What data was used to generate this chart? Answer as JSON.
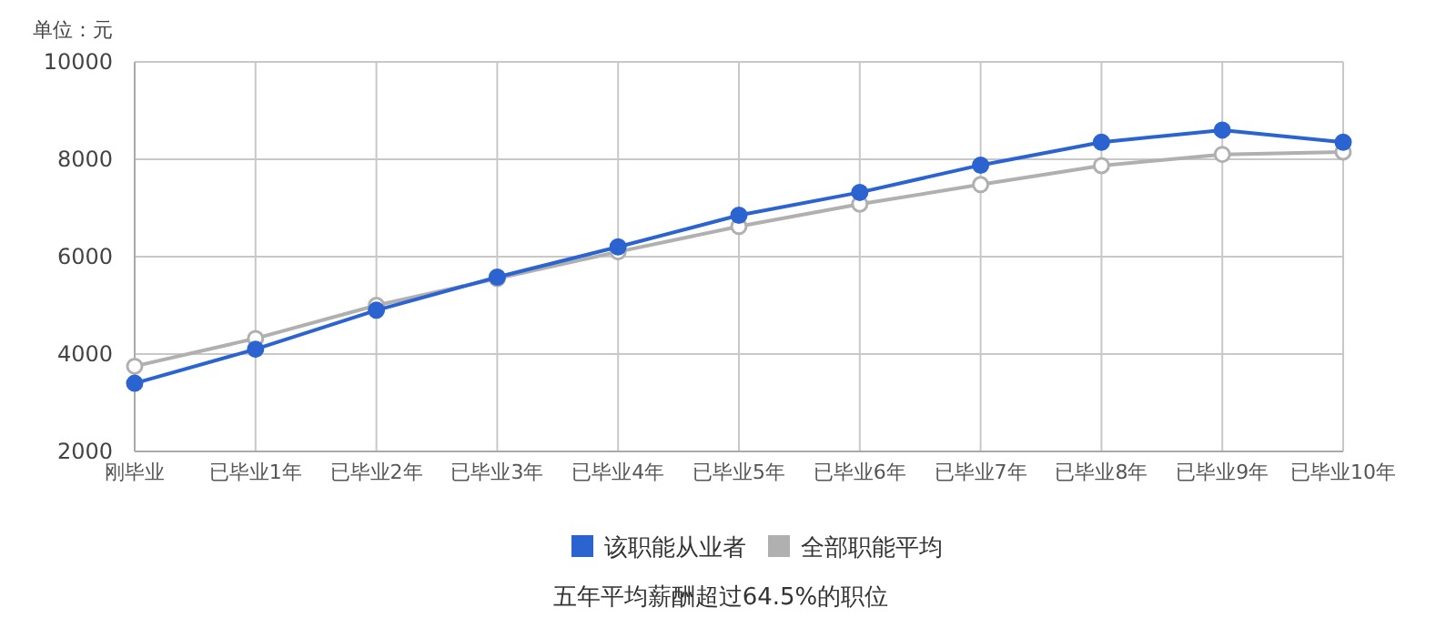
{
  "chart_data": {
    "type": "line",
    "ylabel": "单位：元",
    "categories": [
      "刚毕业",
      "已毕业1年",
      "已毕业2年",
      "已毕业3年",
      "已毕业4年",
      "已毕业5年",
      "已毕业6年",
      "已毕业7年",
      "已毕业8年",
      "已毕业9年",
      "已毕业10年"
    ],
    "series": [
      {
        "name": "该职能从业者",
        "color": "#2b64d0",
        "values": [
          3400,
          4100,
          4900,
          5580,
          6200,
          6850,
          7320,
          7880,
          8350,
          8600,
          8350
        ]
      },
      {
        "name": "全部职能平均",
        "color": "#b0b0b0",
        "values": [
          3750,
          4320,
          5000,
          5550,
          6100,
          6620,
          7080,
          7480,
          7870,
          8100,
          8150
        ]
      }
    ],
    "ylim": [
      2000,
      10000
    ],
    "yticks": [
      2000,
      4000,
      6000,
      8000,
      10000
    ],
    "grid": true,
    "legend": "bottom",
    "marker": "circle",
    "line_style": "solid",
    "annotations": [
      "五年平均薪酬超过64.5%的职位"
    ]
  }
}
